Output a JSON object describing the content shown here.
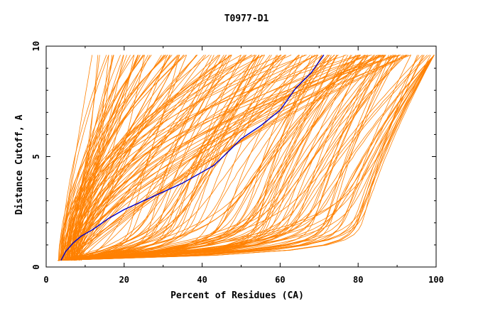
{
  "chart_data": {
    "type": "line",
    "title": "T0977-D1",
    "xlabel": "Percent of Residues (CA)",
    "ylabel": "Distance Cutoff, A",
    "xlim": [
      0,
      100
    ],
    "ylim": [
      0,
      10
    ],
    "x_ticks": [
      "0",
      "20",
      "40",
      "60",
      "80",
      "100"
    ],
    "y_ticks": [
      "0",
      "5",
      "10"
    ],
    "grid": false,
    "legend": "none",
    "colors": {
      "models": "#ff8000",
      "highlight": "#0000cc",
      "axis": "#000000"
    },
    "highlight_series": {
      "x": [
        3.8,
        5,
        7,
        9,
        12,
        16,
        20,
        25,
        30,
        35,
        40,
        43,
        46,
        50,
        55,
        60,
        64,
        68,
        71.2
      ],
      "y": [
        0.3,
        0.7,
        1.1,
        1.4,
        1.7,
        2.2,
        2.6,
        3.0,
        3.4,
        3.8,
        4.3,
        4.6,
        5.1,
        5.8,
        6.4,
        7.1,
        8.1,
        8.8,
        9.6
      ]
    },
    "model_series_count": 200
  }
}
